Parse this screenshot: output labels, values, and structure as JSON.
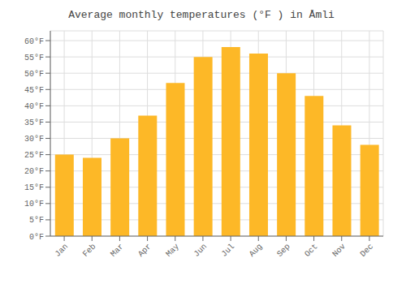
{
  "chart_data": {
    "type": "bar",
    "title": "Average monthly temperatures (°F ) in Åmli",
    "categories": [
      "Jan",
      "Feb",
      "Mar",
      "Apr",
      "May",
      "Jun",
      "Jul",
      "Aug",
      "Sep",
      "Oct",
      "Nov",
      "Dec"
    ],
    "values": [
      25,
      24,
      30,
      37,
      47,
      55,
      58,
      56,
      50,
      43,
      34,
      28
    ],
    "color": "#FDB827",
    "ylim": [
      0,
      63
    ],
    "yticks": [
      {
        "value": 0,
        "label": "0°F"
      },
      {
        "value": 5,
        "label": "5°F"
      },
      {
        "value": 10,
        "label": "10°F"
      },
      {
        "value": 15,
        "label": "15°F"
      },
      {
        "value": 20,
        "label": "20°F"
      },
      {
        "value": 25,
        "label": "25°F"
      },
      {
        "value": 30,
        "label": "30°F"
      },
      {
        "value": 35,
        "label": "35°F"
      },
      {
        "value": 40,
        "label": "40°F"
      },
      {
        "value": 45,
        "label": "45°F"
      },
      {
        "value": 50,
        "label": "50°F"
      },
      {
        "value": 55,
        "label": "55°F"
      },
      {
        "value": 60,
        "label": "60°F"
      }
    ],
    "grid": true
  }
}
